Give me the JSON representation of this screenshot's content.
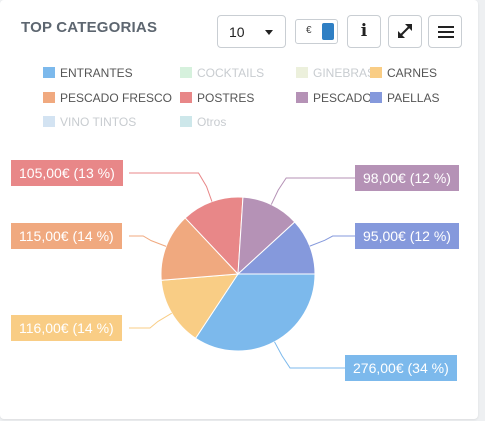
{
  "widget": {
    "title": "TOP CATEGORIAS"
  },
  "toolbar": {
    "page_size_value": "10",
    "currency_symbol": "€",
    "currency_toggle_color": "#2f7fc4",
    "info_glyph": "i",
    "info_icon": "info-icon",
    "expand_icon": "expand-icon",
    "menu_icon": "hamburger-menu-icon"
  },
  "legend": [
    {
      "label": "ENTRANTES",
      "color": "#7cb9ec",
      "enabled": true
    },
    {
      "label": "COCKTAILS",
      "color": "#d6f1dd",
      "enabled": false
    },
    {
      "label": "GINEBRAS",
      "color": "#ecf0dc",
      "enabled": false
    },
    {
      "label": "CARNES",
      "color": "#f9cd85",
      "enabled": true
    },
    {
      "label": "PESCADO FRESCO",
      "color": "#f0a97f",
      "enabled": true
    },
    {
      "label": "POSTRES",
      "color": "#e88788",
      "enabled": true
    },
    {
      "label": "PESCADO",
      "color": "#b592b6",
      "enabled": true
    },
    {
      "label": "PAELLAS",
      "color": "#8599dc",
      "enabled": true
    },
    {
      "label": "VINO TINTOS",
      "color": "#d3e3f2",
      "enabled": false
    },
    {
      "label": "Otros",
      "color": "#cde7ea",
      "enabled": false
    }
  ],
  "chart_data": {
    "type": "pie",
    "slices": [
      {
        "name": "ENTRANTES",
        "value": 276.0,
        "percent": 34,
        "label": "276,00€ (34 %)",
        "color": "#7cb9ec"
      },
      {
        "name": "CARNES",
        "value": 116.0,
        "percent": 14,
        "label": "116,00€ (14 %)",
        "color": "#f9cd85"
      },
      {
        "name": "PESCADO FRESCO",
        "value": 115.0,
        "percent": 14,
        "label": "115,00€ (14 %)",
        "color": "#f0a97f"
      },
      {
        "name": "POSTRES",
        "value": 105.0,
        "percent": 13,
        "label": "105,00€ (13 %)",
        "color": "#e88788"
      },
      {
        "name": "PESCADO",
        "value": 98.0,
        "percent": 12,
        "label": "98,00€ (12 %)",
        "color": "#b592b6"
      },
      {
        "name": "PAELLAS",
        "value": 95.0,
        "percent": 12,
        "label": "95,00€ (12 %)",
        "color": "#8599dc"
      }
    ]
  }
}
